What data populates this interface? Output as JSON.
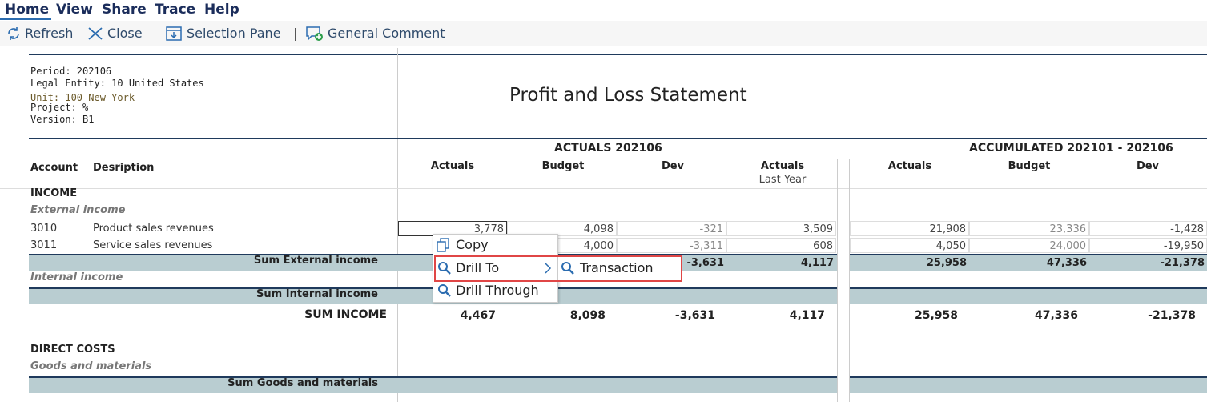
{
  "menu": [
    "Home",
    "View",
    "Share",
    "Trace",
    "Help"
  ],
  "toolbar": [
    "Refresh",
    "Close",
    "Selection Pane",
    "General Comment"
  ],
  "info": [
    "Period: 202106",
    "Legal Entity: 10 United States",
    "Unit: 100 New York",
    "Project: %",
    "Version: B1"
  ],
  "report_title": "Profit and Loss Statement",
  "groups": [
    "ACTUALS 202106",
    "ACCUMULATED 202101 - 202106"
  ],
  "headers": {
    "account": "Account",
    "description": "Desription",
    "columns": [
      "Actuals",
      "Budget",
      "Dev",
      "Actuals",
      "Actuals",
      "Budget",
      "Dev"
    ],
    "last_year": "Last Year"
  },
  "rows": [
    {
      "section": "INCOME"
    },
    {
      "group": "External income"
    },
    {
      "account": "3010",
      "description": "Product sales revenues",
      "values": [
        "3,778",
        "4,098",
        "-321",
        "3,509",
        "21,908",
        "23,336",
        "-1,428"
      ]
    },
    {
      "account": "3011",
      "description": "Service sales revenues",
      "values": [
        null,
        "4,000",
        "-3,311",
        "608",
        "4,050",
        "24,000",
        "-19,950"
      ]
    },
    {
      "sum": "Sum External income",
      "values": [
        null,
        null,
        "-3,631",
        "4,117",
        "25,958",
        "47,336",
        "-21,378"
      ]
    },
    {
      "group": "Internal income"
    },
    {
      "sum": "Sum Internal income"
    },
    {
      "total": "SUM INCOME",
      "values": [
        "4,467",
        "8,098",
        "-3,631",
        "4,117",
        "25,958",
        "47,336",
        "-21,378"
      ]
    },
    {
      "section": "DIRECT COSTS"
    },
    {
      "group": "Goods and materials"
    },
    {
      "sum": "Sum Goods and materials"
    }
  ],
  "context_menu": {
    "items": [
      "Copy",
      "Drill To",
      "Drill Through"
    ],
    "submenu": "Transaction"
  }
}
